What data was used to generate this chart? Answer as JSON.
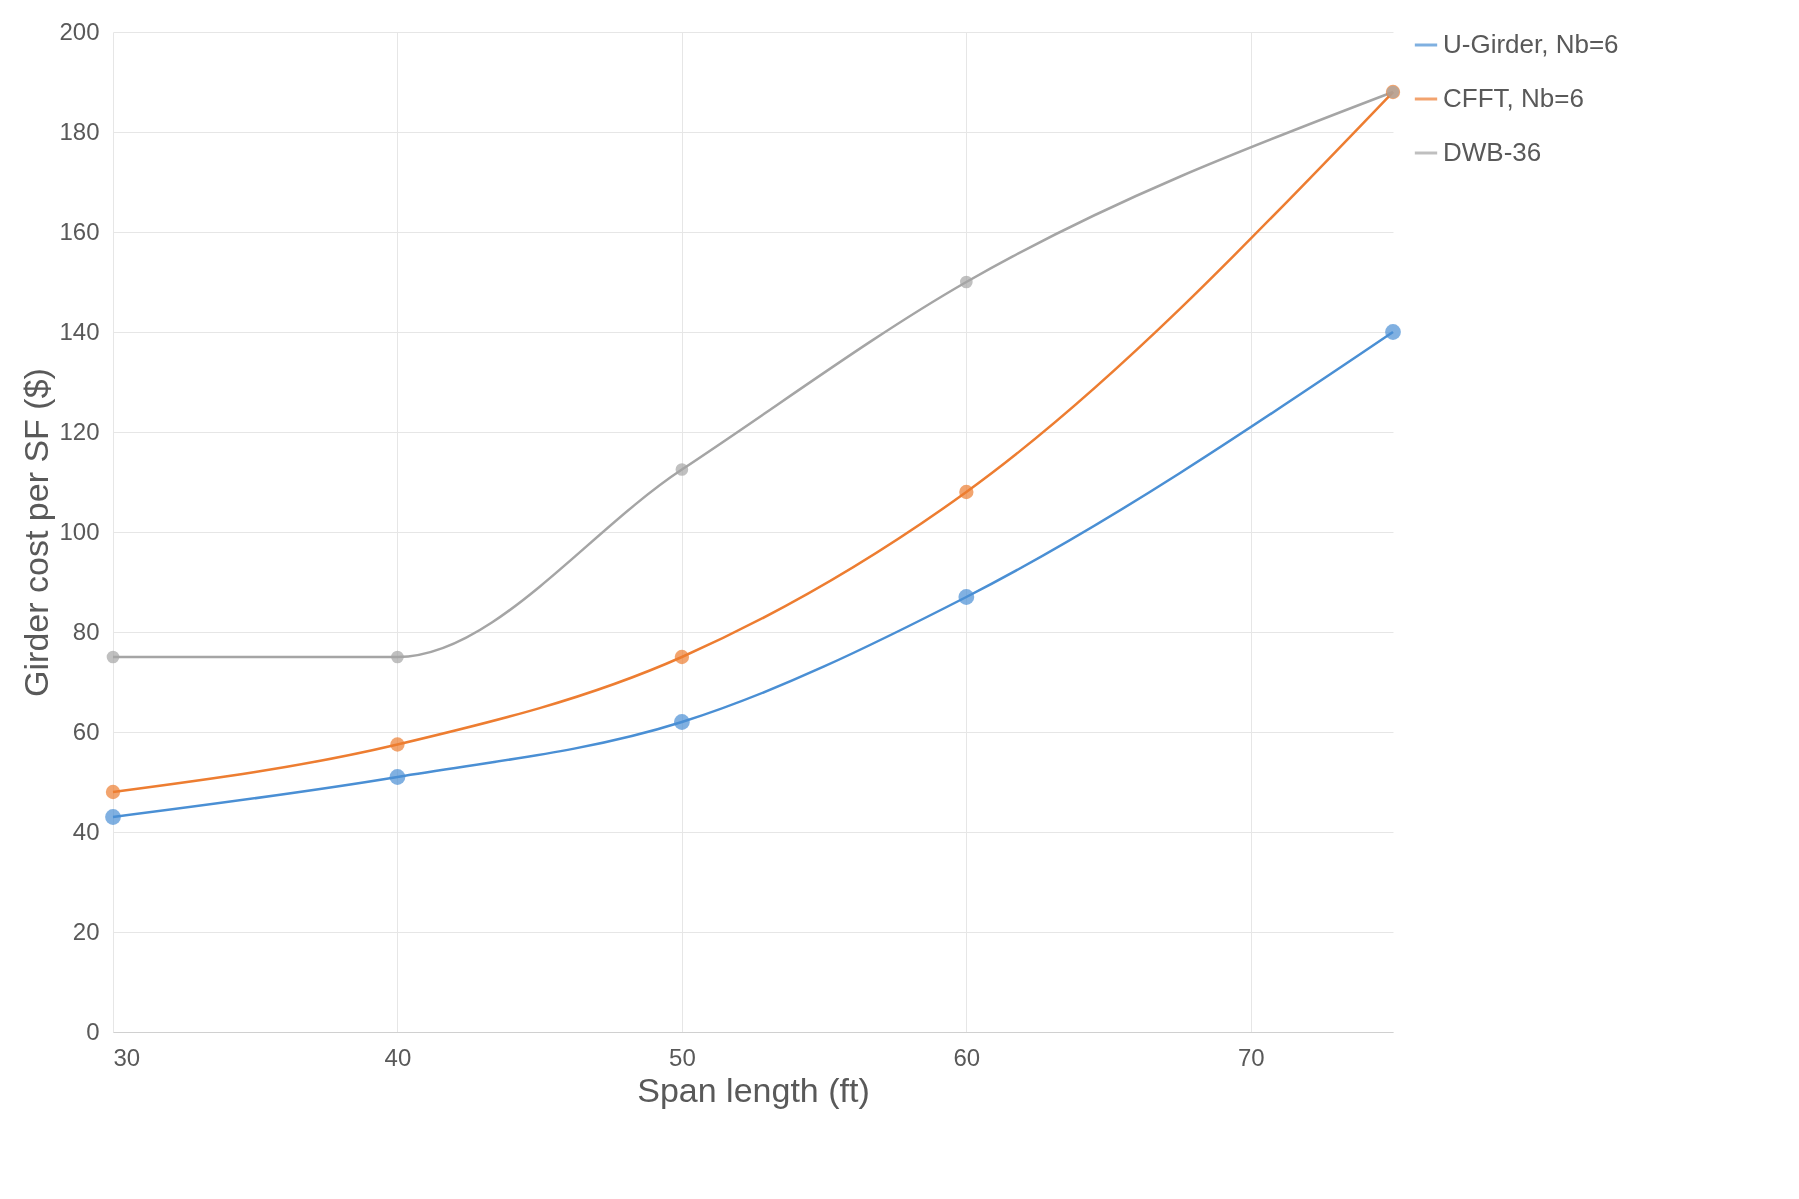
{
  "chart_data": {
    "type": "line",
    "xlabel": "Span length (ft)",
    "ylabel": "Girder cost per SF ($)",
    "x": [
      30,
      40,
      50,
      60,
      75
    ],
    "series": [
      {
        "name": "U-Girder, Nb=6",
        "color": "#4a8fd4",
        "values": [
          43,
          51,
          62,
          87,
          140
        ]
      },
      {
        "name": "CFFT, Nb=6",
        "color": "#ed7d31",
        "values": [
          48,
          57.5,
          75,
          108,
          188
        ]
      },
      {
        "name": "DWB-36",
        "color": "#a5a5a5",
        "values": [
          75,
          75,
          112.5,
          150,
          188
        ]
      }
    ],
    "xlim": [
      30,
      75
    ],
    "xticks": [
      30,
      40,
      50,
      60,
      70
    ],
    "ylim": [
      0,
      200
    ],
    "yticks": [
      0,
      20,
      40,
      60,
      80,
      100,
      120,
      140,
      160,
      180,
      200
    ],
    "grid": true,
    "legend": "right",
    "marker": "circle",
    "line_style": "solid"
  }
}
